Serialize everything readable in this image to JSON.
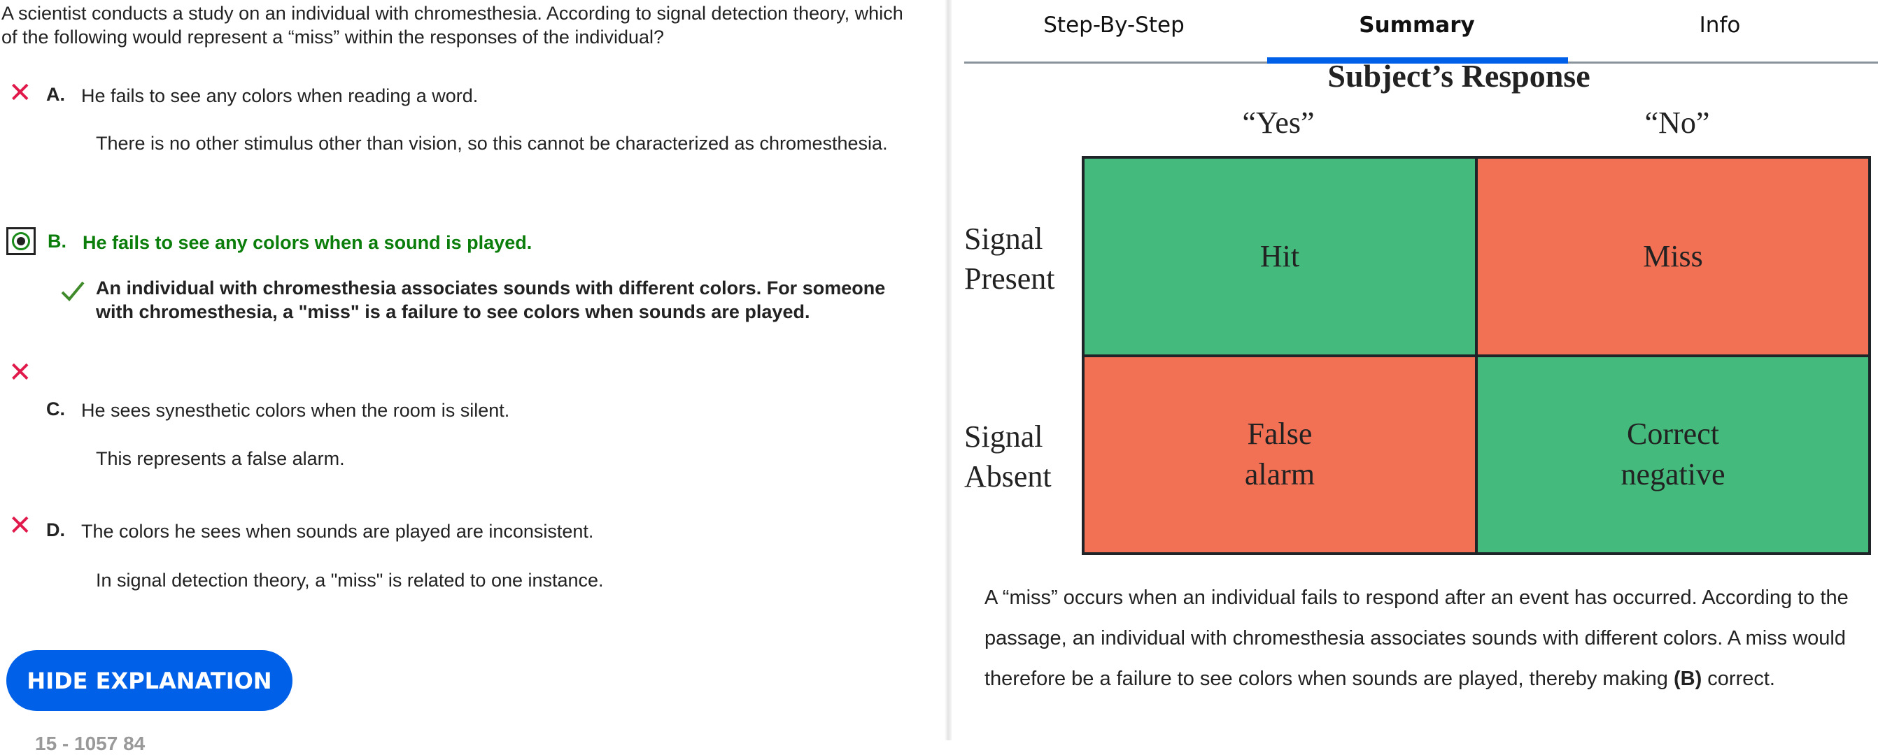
{
  "question": "A scientist conducts a study on an individual with chromesthesia. According to signal detection theory, which of the following would represent a “miss” within the responses of the individual?",
  "options": [
    {
      "letter": "A.",
      "text": "He fails to see any colors when reading a word.",
      "explanation": "There is no other stimulus other than vision, so this cannot be characterized as chromesthesia.",
      "status": "incorrect"
    },
    {
      "letter": "B.",
      "text": "He fails to see any colors when a sound is played.",
      "explanation": "An individual with chromesthesia associates sounds with different colors. For someone with chromesthesia, a \"miss\" is a failure to see colors when sounds are played.",
      "status": "correct-selected"
    },
    {
      "letter": "C.",
      "text": "He sees synesthetic colors when the room is silent.",
      "explanation": "This represents a false alarm.",
      "status": "incorrect"
    },
    {
      "letter": "D.",
      "text": "The colors he sees when sounds are played are inconsistent.",
      "explanation": "In signal detection theory, a \"miss\" is related to one instance.",
      "status": "incorrect"
    }
  ],
  "hide_button": "HIDE EXPLANATION",
  "footer_id": "15 - 1057 84",
  "tabs": [
    {
      "label": "Step-By-Step"
    },
    {
      "label": "Summary",
      "active": true
    },
    {
      "label": "Info"
    }
  ],
  "diagram": {
    "title": "Subject’s Response",
    "columns": [
      "“Yes”",
      "“No”"
    ],
    "rows": [
      [
        "Signal",
        "Present"
      ],
      [
        "Signal",
        "Absent"
      ]
    ],
    "cells": [
      [
        "Hit"
      ],
      [
        "Miss"
      ],
      [
        "False",
        "alarm"
      ],
      [
        "Correct",
        "negative"
      ]
    ],
    "colors": {
      "green": "#44bb7c",
      "orange": "#f27155"
    }
  },
  "summary": {
    "text": "A “miss” occurs when an individual fails to respond after an event has occurred. According to the passage, an individual with chromesthesia associates sounds with different colors. A miss would therefore be a failure to see colors when sounds are played, thereby making ",
    "answer": "(B)",
    "end": " correct."
  },
  "colors": {
    "accent": "#0061e8",
    "correct": "#0a7d0a",
    "incorrect": "#e0194a"
  }
}
